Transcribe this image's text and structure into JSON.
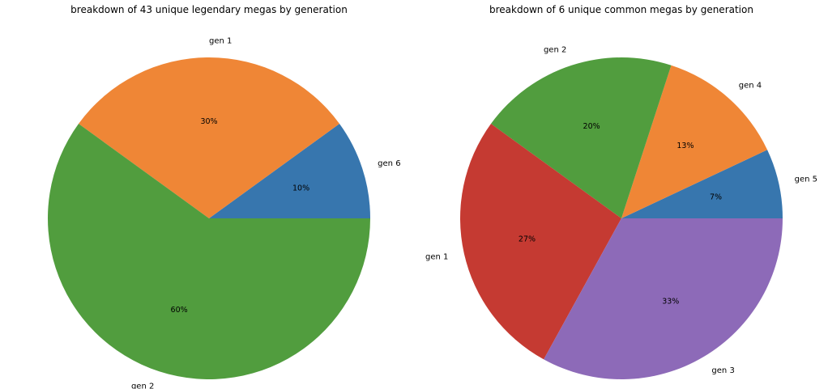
{
  "chart_data": [
    {
      "type": "pie",
      "title": "breakdown of 43 unique legendary megas by generation",
      "start_angle": 0,
      "direction": "counterclockwise",
      "slices": [
        {
          "label": "gen 6",
          "value": 10,
          "pct_label": "10%",
          "color": "#3776ae"
        },
        {
          "label": "gen 1",
          "value": 30,
          "pct_label": "30%",
          "color": "#ef8636"
        },
        {
          "label": "gen 2",
          "value": 60,
          "pct_label": "60%",
          "color": "#519d3e"
        }
      ]
    },
    {
      "type": "pie",
      "title": "breakdown of 6 unique common megas by generation",
      "start_angle": 0,
      "direction": "counterclockwise",
      "slices": [
        {
          "label": "gen 5",
          "value": 7,
          "pct_label": "7%",
          "color": "#3776ae"
        },
        {
          "label": "gen 4",
          "value": 13,
          "pct_label": "13%",
          "color": "#ef8636"
        },
        {
          "label": "gen 2",
          "value": 20,
          "pct_label": "20%",
          "color": "#519d3e"
        },
        {
          "label": "gen 1",
          "value": 27,
          "pct_label": "27%",
          "color": "#c53a32"
        },
        {
          "label": "gen 3",
          "value": 33,
          "pct_label": "33%",
          "color": "#8d6ab8"
        }
      ]
    }
  ]
}
